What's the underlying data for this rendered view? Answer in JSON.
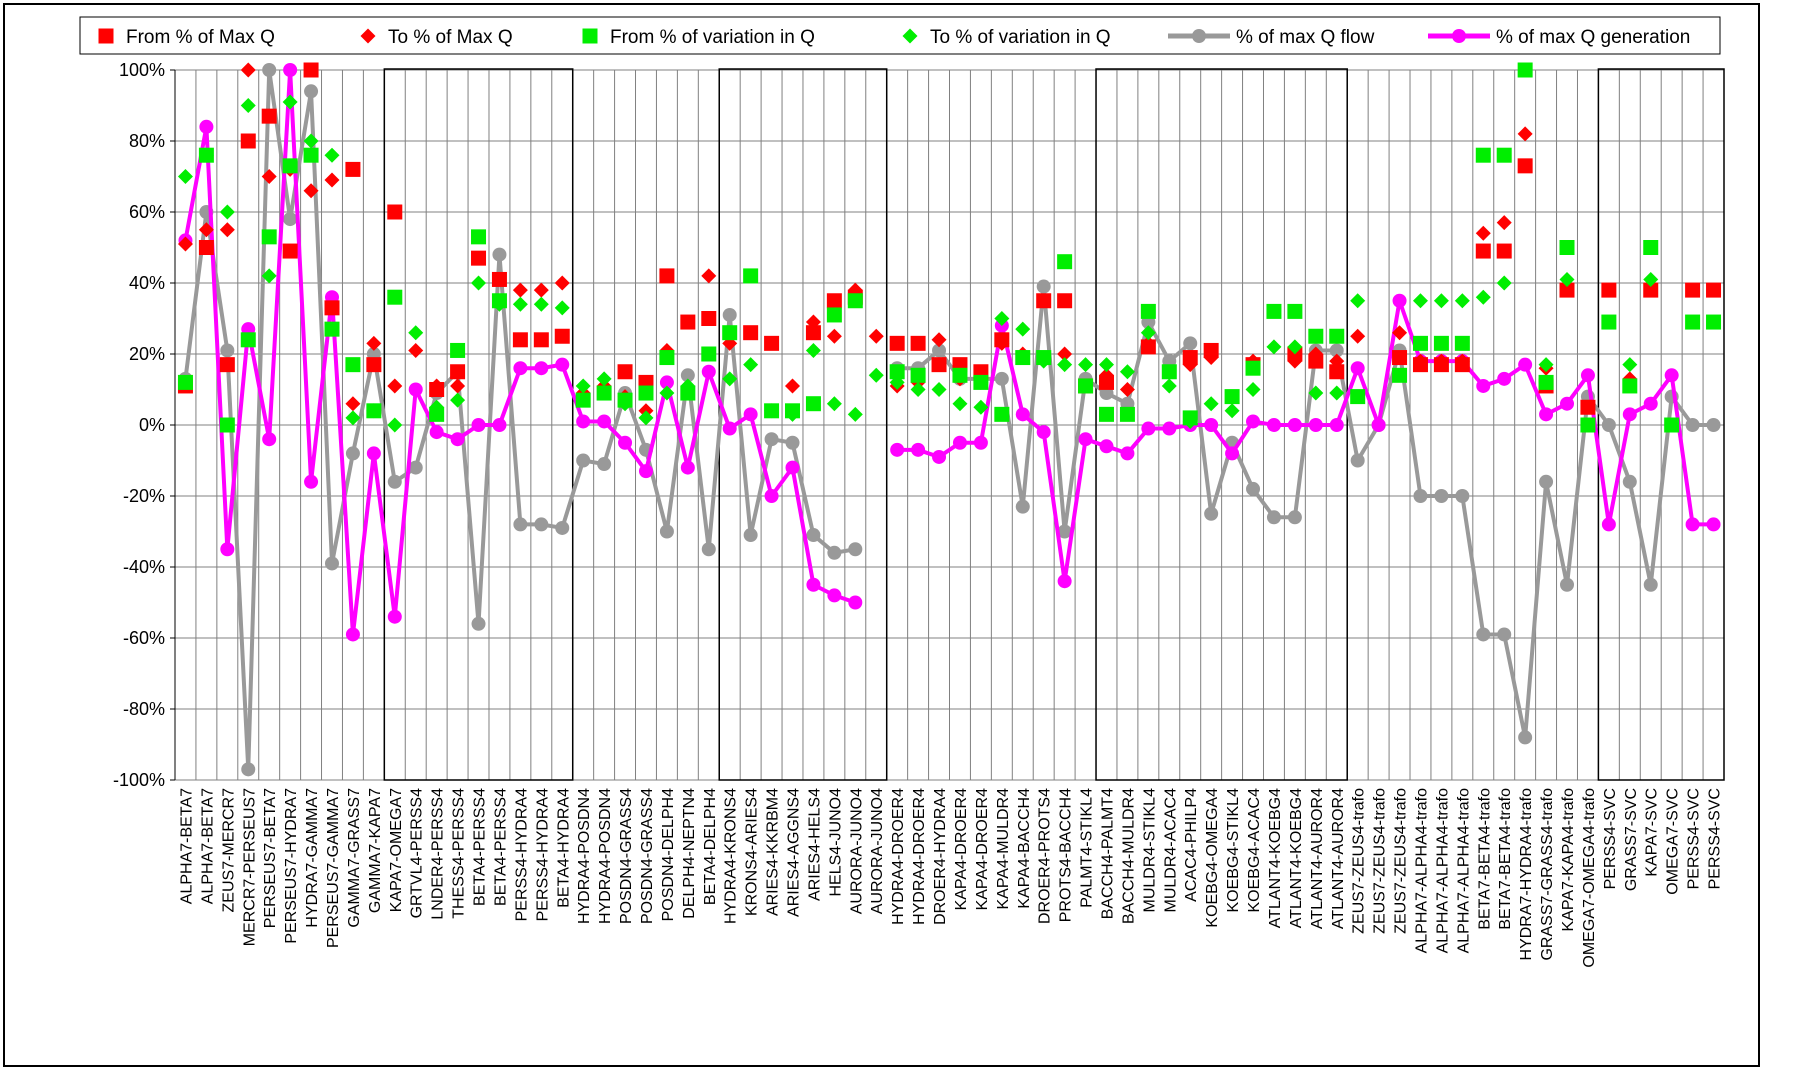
{
  "chart_data": {
    "type": "line",
    "ylim": [
      -100,
      100
    ],
    "y_ticks": [
      "-100%",
      "-80%",
      "-60%",
      "-40%",
      "-20%",
      "0%",
      "20%",
      "40%",
      "60%",
      "80%",
      "100%"
    ],
    "grid": true,
    "legend_position": "top",
    "categories": [
      "ALPHA7-BETA7",
      "ALPHA7-BETA7",
      "ZEUS7-MERCR7",
      "MERCR7-PERSEUS7",
      "PERSEUS7-BETA7",
      "PERSEUS7-HYDRA7",
      "HYDRA7-GAMMA7",
      "PERSEUS7-GAMMA7",
      "GAMMA7-GRASS7",
      "GAMMA7-KAPA7",
      "KAPA7-OMEGA7",
      "GRTVL4-PERSS4",
      "LNDER4-PERSS4",
      "THESS4-PERSS4",
      "BETA4-PERSS4",
      "BETA4-PERSS4",
      "PERSS4-HYDRA4",
      "PERSS4-HYDRA4",
      "BETA4-HYDRA4",
      "HYDRA4-POSDN4",
      "HYDRA4-POSDN4",
      "POSDN4-GRASS4",
      "POSDN4-GRASS4",
      "POSDN4-DELPH4",
      "DELPH4-NEPTN4",
      "BETA4-DELPH4",
      "HYDRA4-KRONS4",
      "KRONS4-ARIES4",
      "ARIES4-KKRBM4",
      "ARIES4-AGGNS4",
      "ARIES4-HELS4",
      "HELS4-JUNO4",
      "AURORA-JUNO4",
      "AURORA-JUNO4",
      "HYDRA4-DROER4",
      "HYDRA4-DROER4",
      "DROER4-HYDRA4",
      "KAPA4-DROER4",
      "KAPA4-DROER4",
      "KAPA4-MULDR4",
      "KAPA4-BACCH4",
      "DROER4-PROTS4",
      "PROTS4-BACCH4",
      "PALMT4-STIKL4",
      "BACCH4-PALMT4",
      "BACCH4-MULDR4",
      "MULDR4-STIKL4",
      "MULDR4-ACAC4",
      "ACAC4-PHILP4",
      "KOEBG4-OMEGA4",
      "KOEBG4-STIKL4",
      "KOEBG4-ACAC4",
      "ATLANT4-KOEBG4",
      "ATLANT4-KOEBG4",
      "ATLANT4-AUROR4",
      "ATLANT4-AUROR4",
      "ZEUS7-ZEUS4-trafo",
      "ZEUS7-ZEUS4-trafo",
      "ZEUS7-ZEUS4-trafo",
      "ALPHA7-ALPHA4-trafo",
      "ALPHA7-ALPHA4-trafo",
      "ALPHA7-ALPHA4-trafo",
      "BETA7-BETA4-trafo",
      "BETA7-BETA4-trafo",
      "HYDRA7-HYDRA4-trafo",
      "GRASS7-GRASS4-trafo",
      "KAPA7-KAPA4-trafo",
      "OMEGA7-OMEGA4-trafo",
      "PERSS4-SVC",
      "GRASS7-SVC",
      "KAPA7-SVC",
      "OMEGA7-SVC",
      "PERSS4-SVC",
      "PERSS4-SVC"
    ],
    "group_boxes": [
      [
        10,
        18
      ],
      [
        26,
        33
      ],
      [
        44,
        55
      ],
      [
        68,
        73
      ]
    ],
    "series": [
      {
        "name": "From % of Max Q",
        "style": "square-markers",
        "color": "#ff0000",
        "values": [
          11,
          50,
          17,
          80,
          87,
          49,
          100,
          33,
          72,
          17,
          60,
          null,
          10,
          15,
          47,
          41,
          24,
          24,
          25,
          null,
          null,
          15,
          12,
          42,
          29,
          30,
          null,
          26,
          23,
          null,
          26,
          35,
          36,
          null,
          23,
          23,
          17,
          17,
          15,
          24,
          null,
          35,
          35,
          11,
          12,
          null,
          22,
          null,
          19,
          21,
          null,
          17,
          null,
          20,
          18,
          15,
          null,
          null,
          19,
          17,
          17,
          17,
          49,
          49,
          73,
          11,
          38,
          5,
          38,
          null,
          38,
          null,
          38,
          38
        ]
      },
      {
        "name": "To % of Max Q",
        "style": "diamond-markers",
        "color": "#ff0000",
        "values": [
          51,
          55,
          55,
          100,
          70,
          72,
          66,
          69,
          6,
          23,
          11,
          21,
          11,
          11,
          null,
          null,
          38,
          38,
          40,
          9,
          11,
          8,
          4,
          21,
          null,
          42,
          23,
          null,
          null,
          11,
          29,
          25,
          38,
          25,
          11,
          12,
          24,
          13,
          12,
          23,
          20,
          null,
          20,
          11,
          14,
          10,
          23,
          null,
          17,
          19,
          null,
          18,
          null,
          18,
          20,
          18,
          25,
          null,
          26,
          18,
          18,
          18,
          54,
          57,
          82,
          16,
          null,
          null,
          null,
          13,
          null,
          null,
          null,
          null
        ]
      },
      {
        "name": "From % of variation in Q",
        "style": "square-markers",
        "color": "#00ee00",
        "values": [
          12,
          76,
          0,
          24,
          53,
          73,
          76,
          27,
          17,
          4,
          36,
          null,
          3,
          21,
          53,
          35,
          null,
          null,
          null,
          7,
          9,
          7,
          9,
          19,
          9,
          20,
          26,
          42,
          4,
          4,
          6,
          31,
          35,
          null,
          15,
          14,
          null,
          14,
          12,
          3,
          19,
          19,
          46,
          11,
          3,
          3,
          32,
          15,
          2,
          null,
          8,
          16,
          32,
          32,
          25,
          25,
          8,
          null,
          14,
          23,
          23,
          23,
          76,
          76,
          100,
          12,
          50,
          0,
          29,
          11,
          50,
          0,
          29,
          29
        ]
      },
      {
        "name": "To % of variation in Q",
        "style": "diamond-markers",
        "color": "#00ee00",
        "values": [
          70,
          76,
          60,
          90,
          42,
          91,
          80,
          76,
          2,
          4,
          0,
          26,
          5,
          7,
          40,
          34,
          34,
          34,
          33,
          11,
          13,
          6,
          2,
          9,
          11,
          null,
          13,
          17,
          4,
          3,
          21,
          6,
          3,
          14,
          12,
          10,
          10,
          6,
          5,
          30,
          27,
          18,
          17,
          17,
          17,
          15,
          26,
          11,
          1,
          6,
          4,
          10,
          22,
          22,
          9,
          9,
          35,
          null,
          null,
          35,
          35,
          35,
          36,
          40,
          null,
          17,
          41,
          null,
          null,
          17,
          41,
          null,
          null,
          null
        ]
      },
      {
        "name": "% of max Q flow",
        "style": "line-markers",
        "color": "#999999",
        "values": [
          13,
          60,
          21,
          -97,
          100,
          58,
          94,
          -39,
          -8,
          20,
          -16,
          -12,
          9,
          15,
          -56,
          48,
          -28,
          -28,
          -29,
          -10,
          -11,
          9,
          -7,
          -30,
          14,
          -35,
          31,
          -31,
          -4,
          -5,
          -31,
          -36,
          -35,
          null,
          16,
          16,
          21,
          13,
          13,
          13,
          -23,
          39,
          -30,
          13,
          9,
          6,
          29,
          18,
          23,
          -25,
          -5,
          -18,
          -26,
          -26,
          21,
          21,
          -10,
          0,
          21,
          -20,
          -20,
          -20,
          -59,
          -59,
          -88,
          -16,
          -45,
          8,
          0,
          -16,
          -45,
          8,
          0,
          0
        ]
      },
      {
        "name": "% of max Q generation",
        "style": "line-markers",
        "color": "#ff00ff",
        "values": [
          52,
          84,
          -35,
          27,
          -4,
          100,
          -16,
          36,
          -59,
          -8,
          -54,
          10,
          -2,
          -4,
          0,
          0,
          16,
          16,
          17,
          1,
          1,
          -5,
          -13,
          12,
          -12,
          15,
          -1,
          3,
          -20,
          -12,
          -45,
          -48,
          -50,
          null,
          -7,
          -7,
          -9,
          -5,
          -5,
          28,
          3,
          -2,
          -44,
          -4,
          -6,
          -8,
          -1,
          -1,
          0,
          0,
          -8,
          1,
          0,
          0,
          0,
          0,
          16,
          0,
          35,
          18,
          18,
          18,
          11,
          13,
          17,
          3,
          6,
          14,
          -28,
          3,
          6,
          14,
          -28,
          -28
        ]
      }
    ]
  }
}
